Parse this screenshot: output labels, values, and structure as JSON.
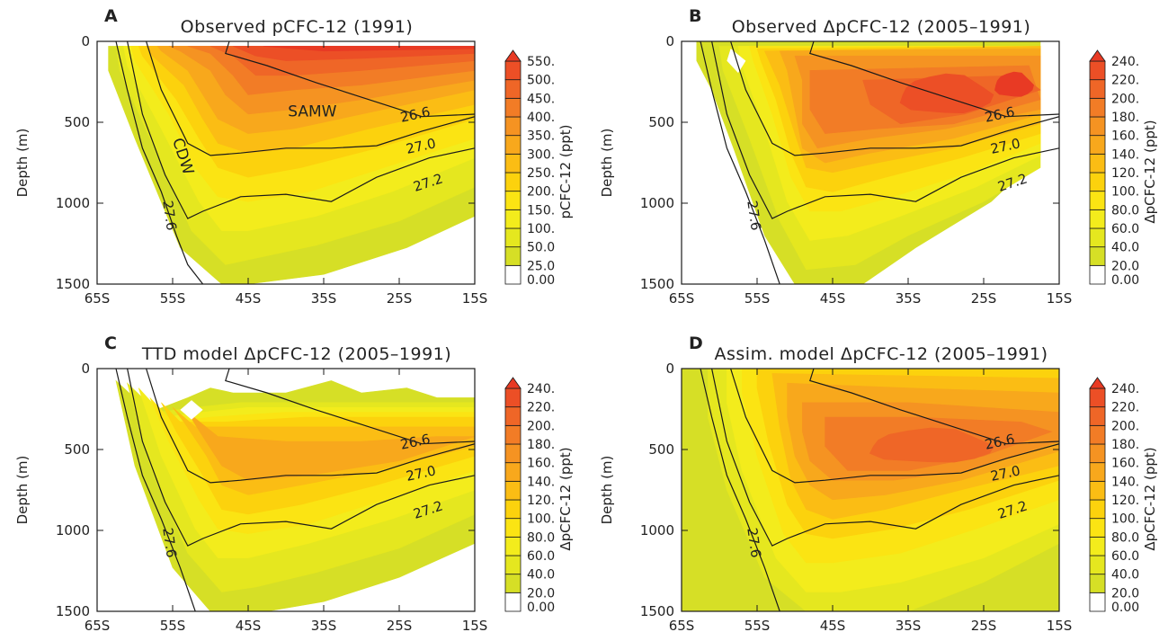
{
  "chart_data": [
    {
      "type": "contour",
      "panel": "A",
      "title": "Observed pCFC-12 (1991)",
      "ylabel": "Depth (m)",
      "colorbar_label": "pCFC-12 (ppt)",
      "xticks": [
        "65S",
        "55S",
        "45S",
        "35S",
        "25S",
        "15S"
      ],
      "yticks": [
        "0",
        "500",
        "1000",
        "1500"
      ],
      "xlim": [
        -65,
        -15
      ],
      "ylim": [
        1500,
        0
      ],
      "colorbar_levels": [
        "0.00",
        "25.0",
        "50.0",
        "100.",
        "150.",
        "200.",
        "250.",
        "300.",
        "350.",
        "400.",
        "450.",
        "500.",
        "550."
      ],
      "isopycnal_labels": [
        "26.6",
        "27.0",
        "27.2",
        "27.6"
      ],
      "annotations": [
        "SAMW",
        "CDW"
      ]
    },
    {
      "type": "contour",
      "panel": "B",
      "title": "Observed ΔpCFC-12 (2005–1991)",
      "ylabel": "Depth (m)",
      "colorbar_label": "ΔpCFC-12 (ppt)",
      "xticks": [
        "65S",
        "55S",
        "45S",
        "35S",
        "25S",
        "15S"
      ],
      "yticks": [
        "0",
        "500",
        "1000",
        "1500"
      ],
      "xlim": [
        -65,
        -15
      ],
      "ylim": [
        1500,
        0
      ],
      "colorbar_levels": [
        "0.00",
        "20.0",
        "40.0",
        "60.0",
        "80.0",
        "100.",
        "120.",
        "140.",
        "160.",
        "180.",
        "200.",
        "220.",
        "240."
      ],
      "isopycnal_labels": [
        "26.6",
        "27.0",
        "27.2",
        "27.6"
      ]
    },
    {
      "type": "contour",
      "panel": "C",
      "title": "TTD model ΔpCFC-12 (2005–1991)",
      "ylabel": "Depth (m)",
      "colorbar_label": "ΔpCFC-12 (ppt)",
      "xticks": [
        "65S",
        "55S",
        "45S",
        "35S",
        "25S",
        "15S"
      ],
      "yticks": [
        "0",
        "500",
        "1000",
        "1500"
      ],
      "xlim": [
        -65,
        -15
      ],
      "ylim": [
        1500,
        0
      ],
      "colorbar_levels": [
        "0.00",
        "20.0",
        "40.0",
        "60.0",
        "80.0",
        "100.",
        "120.",
        "140.",
        "160.",
        "180.",
        "200.",
        "220.",
        "240."
      ],
      "isopycnal_labels": [
        "26.6",
        "27.0",
        "27.2",
        "27.6"
      ]
    },
    {
      "type": "contour",
      "panel": "D",
      "title": "Assim. model ΔpCFC-12 (2005–1991)",
      "ylabel": "Depth (m)",
      "colorbar_label": "ΔpCFC-12 (ppt)",
      "xticks": [
        "65S",
        "55S",
        "45S",
        "35S",
        "25S",
        "15S"
      ],
      "yticks": [
        "0",
        "500",
        "1000",
        "1500"
      ],
      "xlim": [
        -65,
        -15
      ],
      "ylim": [
        1500,
        0
      ],
      "colorbar_levels": [
        "0.00",
        "20.0",
        "40.0",
        "60.0",
        "80.0",
        "100.",
        "120.",
        "140.",
        "160.",
        "180.",
        "200.",
        "220.",
        "240."
      ],
      "isopycnal_labels": [
        "26.6",
        "27.0",
        "27.2",
        "27.6"
      ]
    }
  ],
  "palette": [
    "#ffffff",
    "#d6df26",
    "#e5e71f",
    "#f3ec1c",
    "#fbe413",
    "#fcd20d",
    "#fbbd14",
    "#f8a81c",
    "#f59322",
    "#f27c26",
    "#ef6627",
    "#ec4f26",
    "#e83a24"
  ]
}
